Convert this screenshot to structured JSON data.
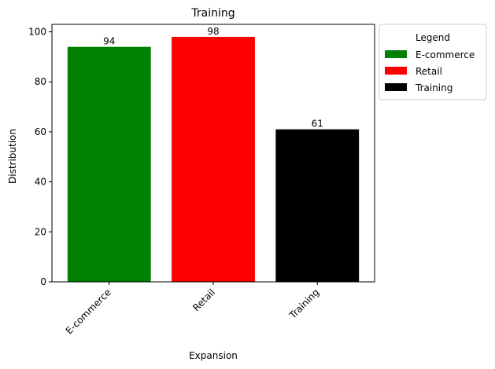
{
  "chart_data": {
    "type": "bar",
    "title": "Training",
    "xlabel": "Expansion",
    "ylabel": "Distribution",
    "categories": [
      "E-commerce",
      "Retail",
      "Training"
    ],
    "values": [
      94,
      98,
      61
    ],
    "colors": [
      "#008000",
      "#ff0000",
      "#000000"
    ],
    "ylim": [
      0,
      103
    ],
    "yticks": [
      0,
      20,
      40,
      60,
      80,
      100
    ],
    "grid": false,
    "legend": {
      "title": "Legend",
      "placement": "outside-right-top",
      "entries": [
        "E-commerce",
        "Retail",
        "Training"
      ]
    }
  }
}
